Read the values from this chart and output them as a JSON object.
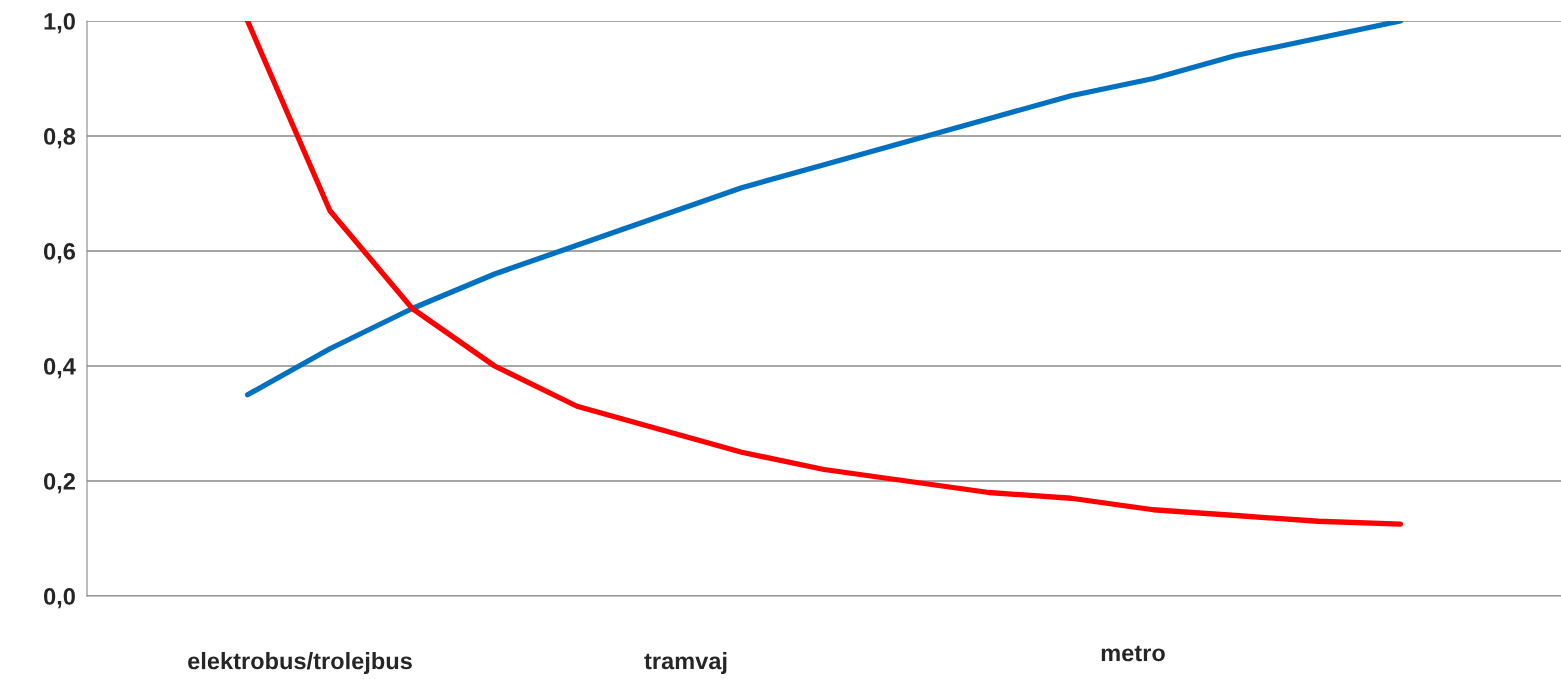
{
  "chart_data": {
    "type": "line",
    "categories": [
      null,
      null,
      null,
      null,
      null,
      null,
      null,
      null,
      null,
      null,
      null,
      null,
      null,
      null,
      null
    ],
    "series": [
      {
        "color": "#0070c0",
        "values": [
          0.35,
          0.43,
          0.5,
          0.56,
          0.61,
          0.66,
          0.71,
          0.75,
          0.79,
          0.83,
          0.87,
          0.9,
          0.94,
          0.97,
          1.0
        ]
      },
      {
        "color": "#ff0000",
        "values": [
          1.0,
          0.67,
          0.5,
          0.4,
          0.33,
          0.29,
          0.25,
          0.22,
          0.2,
          0.18,
          0.17,
          0.15,
          0.14,
          0.13,
          0.125
        ]
      }
    ],
    "ylim": [
      0,
      1.0
    ],
    "yticks": [
      {
        "value": 0,
        "label": "0,0"
      },
      {
        "value": 0.2,
        "label": "0,2"
      },
      {
        "value": 0.4,
        "label": "0,4"
      },
      {
        "value": 0.6,
        "label": "0,6"
      },
      {
        "value": 0.8,
        "label": "0,8"
      },
      {
        "value": 1.0,
        "label": "1,0"
      }
    ],
    "grid": "y",
    "marker": "none",
    "line_style": "solid",
    "legend": false,
    "annotations": [
      "elektrobus/trolejbus",
      "tramvaj",
      "metro"
    ]
  }
}
